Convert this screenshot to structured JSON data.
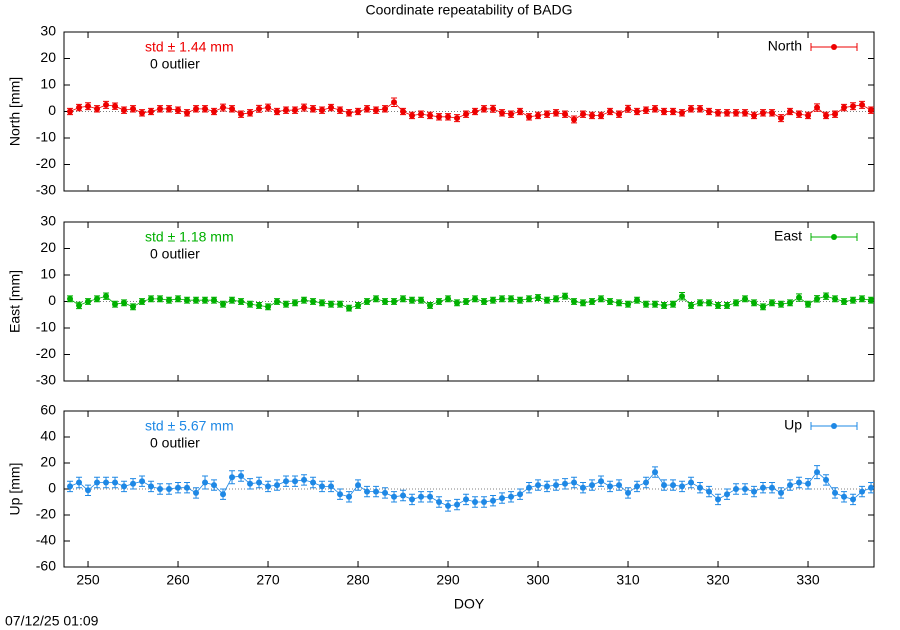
{
  "title": "Coordinate repeatability of BADG",
  "timestamp": "07/12/25 01:09",
  "chart_data": [
    {
      "type": "errorbar",
      "ylabel": "North [mm]",
      "std_text": "std ± 1.44 mm",
      "outlier_text": "0 outlier",
      "legend": "top-right",
      "xlim": [
        247.33,
        337.33
      ],
      "xticks": [
        250,
        260,
        270,
        280,
        290,
        300,
        310,
        320,
        330
      ],
      "ylim": [
        -30,
        30
      ],
      "yticks": [
        -30,
        -20,
        -10,
        0,
        10,
        20,
        30
      ],
      "x": [
        248,
        249,
        250,
        251,
        252,
        253,
        254,
        255,
        256,
        257,
        258,
        259,
        260,
        261,
        262,
        263,
        264,
        265,
        266,
        267,
        268,
        269,
        270,
        271,
        272,
        273,
        274,
        275,
        276,
        277,
        278,
        279,
        280,
        281,
        282,
        283,
        284,
        285,
        286,
        287,
        288,
        289,
        290,
        291,
        292,
        293,
        294,
        295,
        296,
        297,
        298,
        299,
        300,
        301,
        302,
        303,
        304,
        305,
        306,
        307,
        308,
        309,
        310,
        311,
        312,
        313,
        314,
        315,
        316,
        317,
        318,
        319,
        320,
        321,
        322,
        323,
        324,
        325,
        326,
        327,
        328,
        329,
        330,
        331,
        332,
        333,
        334,
        335,
        336,
        337
      ],
      "series": [
        {
          "name": "North",
          "color": "#ee0000",
          "values": [
            0,
            1.5,
            2,
            1,
            2.5,
            2,
            0.5,
            1,
            -0.5,
            0,
            1,
            1,
            0.5,
            -0.5,
            1,
            1,
            0,
            1.5,
            1,
            -1,
            -0.5,
            1,
            1.5,
            0,
            0.5,
            0.5,
            1.5,
            1,
            0.5,
            1.5,
            0.5,
            -0.5,
            0,
            1,
            0.5,
            1,
            3.5,
            0,
            -1.5,
            -1,
            -1.5,
            -2,
            -2,
            -2.5,
            -1,
            0,
            1,
            1,
            -0.5,
            -1,
            0,
            -2,
            -1.5,
            -1,
            -0.5,
            -1,
            -3,
            -1,
            -1.5,
            -1.5,
            0,
            -1,
            1,
            0,
            0.5,
            1,
            0,
            0,
            -0.5,
            1,
            1,
            0,
            -0.5,
            -0.5,
            -0.5,
            -0.5,
            -1.5,
            -0.5,
            -0.5,
            -2.5,
            0,
            -1,
            -1.5,
            1.5,
            -1.5,
            -1,
            1.5,
            2,
            2.5,
            0.5
          ],
          "errors": [
            1.2,
            1.2,
            1.3,
            1.2,
            1.3,
            1.2,
            1.2,
            1.2,
            1.2,
            1.2,
            1.2,
            1.2,
            1.2,
            1.2,
            1.2,
            1.2,
            1.2,
            1.3,
            1.2,
            1.2,
            1.2,
            1.3,
            1.3,
            1.2,
            1.2,
            1.2,
            1.3,
            1.2,
            1.2,
            1.2,
            1.2,
            1.2,
            1.2,
            1.2,
            1.2,
            1.2,
            1.6,
            1.2,
            1.2,
            1.2,
            1.2,
            1.2,
            1.2,
            1.3,
            1.2,
            1.2,
            1.2,
            1.3,
            1.2,
            1.2,
            1.2,
            1.2,
            1.2,
            1.2,
            1.2,
            1.2,
            1.3,
            1.2,
            1.2,
            1.2,
            1.2,
            1.2,
            1.3,
            1.2,
            1.2,
            1.2,
            1.2,
            1.2,
            1.2,
            1.2,
            1.2,
            1.2,
            1.2,
            1.2,
            1.2,
            1.2,
            1.2,
            1.2,
            1.2,
            1.3,
            1.2,
            1.2,
            1.2,
            1.4,
            1.2,
            1.2,
            1.2,
            1.3,
            1.3,
            1.2
          ]
        }
      ]
    },
    {
      "type": "errorbar",
      "ylabel": "East [mm]",
      "std_text": "std ± 1.18 mm",
      "outlier_text": "0 outlier",
      "legend": "top-right",
      "xlim": [
        247.33,
        337.33
      ],
      "xticks": [
        250,
        260,
        270,
        280,
        290,
        300,
        310,
        320,
        330
      ],
      "ylim": [
        -30,
        30
      ],
      "yticks": [
        -30,
        -20,
        -10,
        0,
        10,
        20,
        30
      ],
      "x": [
        248,
        249,
        250,
        251,
        252,
        253,
        254,
        255,
        256,
        257,
        258,
        259,
        260,
        261,
        262,
        263,
        264,
        265,
        266,
        267,
        268,
        269,
        270,
        271,
        272,
        273,
        274,
        275,
        276,
        277,
        278,
        279,
        280,
        281,
        282,
        283,
        284,
        285,
        286,
        287,
        288,
        289,
        290,
        291,
        292,
        293,
        294,
        295,
        296,
        297,
        298,
        299,
        300,
        301,
        302,
        303,
        304,
        305,
        306,
        307,
        308,
        309,
        310,
        311,
        312,
        313,
        314,
        315,
        316,
        317,
        318,
        319,
        320,
        321,
        322,
        323,
        324,
        325,
        326,
        327,
        328,
        329,
        330,
        331,
        332,
        333,
        334,
        335,
        336,
        337
      ],
      "series": [
        {
          "name": "East",
          "color": "#00b000",
          "values": [
            1,
            -1.5,
            0,
            1,
            2,
            -1,
            -0.5,
            -2,
            0,
            1,
            1,
            0.5,
            1,
            0.5,
            0.5,
            0.5,
            0.5,
            -1,
            0.5,
            0,
            -1,
            -1.5,
            -2,
            0,
            -1,
            -0.5,
            0.5,
            0,
            -0.5,
            -1,
            -1,
            -2.5,
            -1.5,
            0,
            1,
            0,
            0,
            1,
            0.5,
            0.5,
            -1.5,
            0,
            1,
            -0.5,
            0,
            1,
            0,
            0.5,
            1,
            1,
            0.5,
            1,
            1.5,
            0.5,
            1,
            2,
            0,
            -0.5,
            0,
            1,
            0,
            -0.5,
            -1,
            0.5,
            -1,
            -1,
            -1.5,
            -1,
            2,
            -1.5,
            -0.5,
            -0.5,
            -1.5,
            -1.5,
            -0.5,
            1,
            -0.5,
            -2,
            -0.5,
            -1,
            -0.5,
            1.5,
            -1,
            1,
            2,
            1,
            0,
            0.5,
            1,
            0.5
          ],
          "errors": [
            1.1,
            1.2,
            1.1,
            1.1,
            1.2,
            1.1,
            1.1,
            1.1,
            1.1,
            1.1,
            1.1,
            1.1,
            1.1,
            1.1,
            1.1,
            1.1,
            1.1,
            1.1,
            1.1,
            1.1,
            1.1,
            1.1,
            1.1,
            1.1,
            1.1,
            1.1,
            1.1,
            1.1,
            1.1,
            1.1,
            1.1,
            1.1,
            1.1,
            1.1,
            1.1,
            1.1,
            1.1,
            1.1,
            1.1,
            1.1,
            1.1,
            1.1,
            1.1,
            1.1,
            1.1,
            1.1,
            1.1,
            1.1,
            1.1,
            1.1,
            1.1,
            1.1,
            1.1,
            1.1,
            1.1,
            1.1,
            1.1,
            1.1,
            1.1,
            1.1,
            1.1,
            1.1,
            1.1,
            1.1,
            1.1,
            1.1,
            1.1,
            1.1,
            1.4,
            1.1,
            1.1,
            1.1,
            1.1,
            1.1,
            1.1,
            1.1,
            1.1,
            1.1,
            1.1,
            1.1,
            1.1,
            1.4,
            1.1,
            1.2,
            1.2,
            1.1,
            1.1,
            1.1,
            1.1,
            1.1
          ]
        }
      ]
    },
    {
      "type": "errorbar",
      "ylabel": "Up [mm]",
      "xlabel": "DOY",
      "std_text": "std ± 5.67 mm",
      "outlier_text": "0 outlier",
      "legend": "top-right",
      "xlim": [
        247.33,
        337.33
      ],
      "xticks": [
        250,
        260,
        270,
        280,
        290,
        300,
        310,
        320,
        330
      ],
      "ylim": [
        -60,
        60
      ],
      "yticks": [
        -60,
        -40,
        -20,
        0,
        20,
        40,
        60
      ],
      "x": [
        248,
        249,
        250,
        251,
        252,
        253,
        254,
        255,
        256,
        257,
        258,
        259,
        260,
        261,
        262,
        263,
        264,
        265,
        266,
        267,
        268,
        269,
        270,
        271,
        272,
        273,
        274,
        275,
        276,
        277,
        278,
        279,
        280,
        281,
        282,
        283,
        284,
        285,
        286,
        287,
        288,
        289,
        290,
        291,
        292,
        293,
        294,
        295,
        296,
        297,
        298,
        299,
        300,
        301,
        302,
        303,
        304,
        305,
        306,
        307,
        308,
        309,
        310,
        311,
        312,
        313,
        314,
        315,
        316,
        317,
        318,
        319,
        320,
        321,
        322,
        323,
        324,
        325,
        326,
        327,
        328,
        329,
        330,
        331,
        332,
        333,
        334,
        335,
        336,
        337
      ],
      "series": [
        {
          "name": "Up",
          "color": "#1e88e5",
          "values": [
            2,
            5,
            -1,
            5,
            5,
            5,
            2,
            4,
            6,
            2,
            0,
            0,
            1,
            1,
            -3,
            5,
            3,
            -4,
            9,
            10,
            4,
            5,
            2,
            3,
            6,
            6,
            7,
            5,
            2,
            2,
            -4,
            -6,
            3,
            -2,
            -2,
            -3,
            -6,
            -5,
            -8,
            -6,
            -6,
            -10,
            -13,
            -12,
            -8,
            -10,
            -10,
            -9,
            -7,
            -6,
            -4,
            1,
            3,
            2,
            3,
            4,
            5,
            1,
            3,
            6,
            2,
            3,
            -3,
            2,
            5,
            13,
            3,
            3,
            2,
            5,
            1,
            -2,
            -8,
            -4,
            0,
            0,
            -2,
            1,
            1,
            -3,
            3,
            5,
            4,
            13,
            7,
            -3,
            -6,
            -8,
            -2,
            1
          ],
          "errors": [
            4,
            4,
            4,
            4,
            4,
            4,
            4,
            4,
            4,
            4,
            4,
            4,
            4,
            4,
            4,
            5,
            4,
            4,
            5,
            4,
            4,
            4,
            4,
            4,
            4,
            4,
            4,
            4,
            4,
            4,
            4,
            4,
            4,
            4,
            4,
            4,
            4,
            4,
            4,
            4,
            4,
            4,
            4,
            4,
            4,
            4,
            4,
            4,
            4,
            4,
            4,
            4,
            4,
            4,
            4,
            4,
            4,
            4,
            4,
            4,
            4,
            4,
            4,
            4,
            4,
            4,
            4,
            4,
            4,
            4,
            4,
            4,
            4,
            4,
            4,
            4,
            4,
            4,
            4,
            4,
            4,
            4,
            4,
            5,
            4,
            4,
            4,
            4,
            4,
            4
          ]
        }
      ]
    }
  ]
}
